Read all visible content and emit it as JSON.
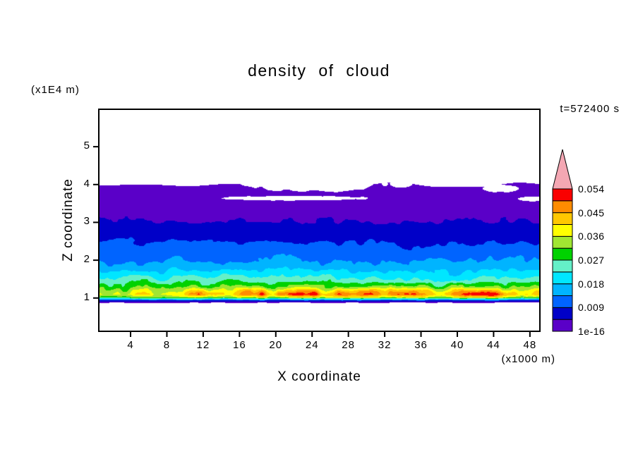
{
  "chart_data": {
    "type": "heatmap",
    "title": "density of cloud",
    "time_label": "t=572400 s",
    "xlabel": "X coordinate",
    "ylabel": "Z coordinate",
    "x_unit": "(x1000 m)",
    "y_unit": "(x1E4 m)",
    "x_ticks": [
      4,
      8,
      12,
      16,
      20,
      24,
      28,
      32,
      36,
      40,
      44,
      48
    ],
    "y_ticks": [
      1,
      2,
      3,
      4,
      5
    ],
    "xlim": [
      0.5,
      49.1
    ],
    "ylim": [
      0.12,
      5.99
    ],
    "grid": false,
    "legend_position": "right-colorbar",
    "levels": [
      1e-16,
      0.0045,
      0.009,
      0.0135,
      0.018,
      0.0225,
      0.027,
      0.0315,
      0.036,
      0.0405,
      0.045,
      0.0495,
      0.054
    ],
    "colors": [
      "#5a00c8",
      "#0000c8",
      "#0064ff",
      "#00b4ff",
      "#00e6ff",
      "#64f0c8",
      "#00d200",
      "#a0e632",
      "#ffff00",
      "#ffc800",
      "#ff8c00",
      "#fa0000"
    ],
    "over_color": "#f4a7b3",
    "under_color": "#ffffff",
    "colorbar_labels": [
      "0.054",
      "0.045",
      "0.036",
      "0.027",
      "0.018",
      "0.009",
      "1e-16"
    ],
    "field_summary": "Horizontally stratified cloud-density field: white (zero) above z~4.0, a uniform low-density violet layer 3.0-4.0 with white gaps near x=16-33, x=34, x=44-48, bands increasing downward through navy/blue/cyan/green, a streaky yellow-orange-red maximum layer (~0.04-0.054) near z~1.0-1.2 strongest around x=18-30 and x=39-47, a thin dark line at z~0.9, and white below",
    "profile": [
      [
        0.85,
        0
      ],
      [
        0.89,
        0.002
      ],
      [
        0.93,
        0.008
      ],
      [
        0.97,
        0.018
      ],
      [
        1.02,
        0.032
      ],
      [
        1.1,
        0.04
      ],
      [
        1.2,
        0.037
      ],
      [
        1.3,
        0.031
      ],
      [
        1.45,
        0.025
      ],
      [
        1.6,
        0.021
      ],
      [
        1.8,
        0.0165
      ],
      [
        2.0,
        0.0135
      ],
      [
        2.3,
        0.0105
      ],
      [
        2.6,
        0.0078
      ],
      [
        3.0,
        0.0046
      ],
      [
        3.4,
        0.0028
      ],
      [
        3.8,
        0.0012
      ],
      [
        4.15,
        0.0006
      ]
    ],
    "streaks": [
      {
        "c": 21,
        "s": 2.5,
        "a": 1
      },
      {
        "c": 27,
        "s": 2.5,
        "a": 0.9
      },
      {
        "c": 43,
        "s": 3,
        "a": 0.95
      },
      {
        "c": 12,
        "s": 1.5,
        "a": 0.5
      },
      {
        "c": 35,
        "s": 1.5,
        "a": 0.4
      }
    ],
    "cloud_top": {
      "base": 3.98,
      "amp": 0.1
    },
    "cloud_base": 0.875,
    "holes": [
      {
        "cx": 24.5,
        "cz": 4.02,
        "rx": 7.5,
        "rz": 0.2
      },
      {
        "cx": 22.0,
        "cz": 3.64,
        "rx": 8.0,
        "rz": 0.06
      },
      {
        "cx": 33.8,
        "cz": 4.02,
        "rx": 1.2,
        "rz": 0.1
      },
      {
        "cx": 44.8,
        "cz": 3.9,
        "rx": 2.0,
        "rz": 0.1
      },
      {
        "cx": 48.3,
        "cz": 3.62,
        "rx": 1.5,
        "rz": 0.06
      }
    ]
  }
}
